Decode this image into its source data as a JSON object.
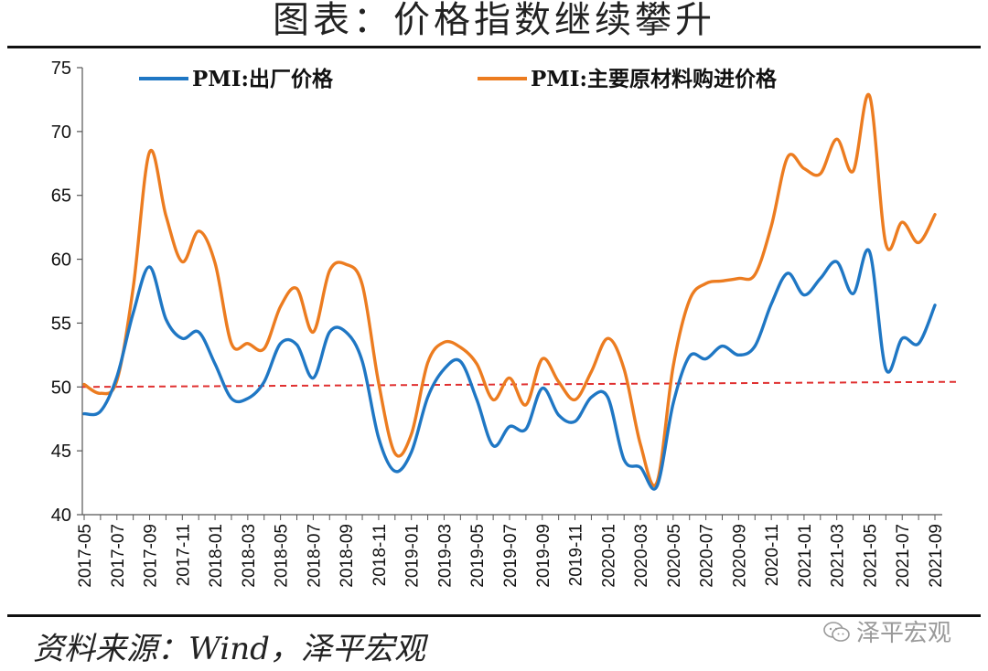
{
  "header": {
    "title": "图表：价格指数继续攀升"
  },
  "footer": {
    "source": "资料来源：Wind，泽平宏观",
    "watermark": "泽平宏观",
    "watermark_icon": "wechat-icon"
  },
  "chart_data": {
    "type": "line",
    "title": "图表：价格指数继续攀升",
    "xlabel": "",
    "ylabel": "",
    "ylim": [
      40,
      75
    ],
    "yticks": [
      40,
      45,
      50,
      55,
      60,
      65,
      70,
      75
    ],
    "grid": false,
    "legend_position": "top",
    "categories": [
      "2017-05",
      "2017-06",
      "2017-07",
      "2017-08",
      "2017-09",
      "2017-10",
      "2017-11",
      "2017-12",
      "2018-01",
      "2018-02",
      "2018-03",
      "2018-04",
      "2018-05",
      "2018-06",
      "2018-07",
      "2018-08",
      "2018-09",
      "2018-10",
      "2018-11",
      "2018-12",
      "2019-01",
      "2019-02",
      "2019-03",
      "2019-04",
      "2019-05",
      "2019-06",
      "2019-07",
      "2019-08",
      "2019-09",
      "2019-10",
      "2019-11",
      "2019-12",
      "2020-01",
      "2020-02",
      "2020-03",
      "2020-04",
      "2020-05",
      "2020-06",
      "2020-07",
      "2020-08",
      "2020-09",
      "2020-10",
      "2020-11",
      "2020-12",
      "2021-01",
      "2021-02",
      "2021-03",
      "2021-04",
      "2021-05",
      "2021-06",
      "2021-07",
      "2021-08",
      "2021-09"
    ],
    "tick_labels": [
      "2017-05",
      "2017-07",
      "2017-09",
      "2017-11",
      "2018-01",
      "2018-03",
      "2018-05",
      "2018-07",
      "2018-09",
      "2018-11",
      "2019-01",
      "2019-03",
      "2019-05",
      "2019-07",
      "2019-09",
      "2019-11",
      "2020-01",
      "2020-03",
      "2020-05",
      "2020-07",
      "2020-09",
      "2020-11",
      "2021-01",
      "2021-03",
      "2021-05",
      "2021-07",
      "2021-09"
    ],
    "series": [
      {
        "name": "PMI:出厂价格",
        "color": "#1f77c4",
        "values": [
          47.9,
          48.1,
          50.8,
          55.8,
          59.4,
          55.3,
          53.8,
          54.3,
          51.8,
          49.1,
          49.1,
          50.4,
          53.4,
          53.3,
          50.7,
          54.3,
          54.3,
          52.0,
          46.0,
          43.4,
          44.9,
          49.2,
          51.4,
          52.0,
          49.0,
          45.4,
          46.9,
          46.7,
          49.9,
          47.8,
          47.3,
          49.2,
          49.2,
          44.3,
          43.7,
          42.2,
          48.7,
          52.4,
          52.2,
          53.2,
          52.5,
          53.2,
          56.5,
          58.9,
          57.2,
          58.5,
          59.8,
          57.3,
          60.6,
          51.4,
          53.8,
          53.4,
          56.4
        ]
      },
      {
        "name": "PMI:主要原材料购进价格",
        "color": "#ec7c20",
        "values": [
          50.2,
          49.5,
          50.5,
          57.8,
          68.4,
          63.4,
          59.8,
          62.2,
          59.7,
          53.4,
          53.4,
          53.0,
          56.3,
          57.7,
          54.3,
          59.1,
          59.6,
          58.0,
          50.3,
          44.8,
          46.3,
          51.9,
          53.5,
          53.1,
          51.8,
          49.0,
          50.7,
          48.6,
          52.2,
          50.4,
          49.0,
          51.2,
          53.8,
          51.4,
          45.5,
          42.5,
          51.6,
          56.8,
          58.1,
          58.3,
          58.5,
          58.8,
          62.6,
          68.0,
          67.1,
          66.7,
          69.4,
          66.9,
          72.8,
          61.2,
          62.9,
          61.3,
          63.5
        ]
      }
    ],
    "reference_line": {
      "value": 50,
      "end_value": 50.4,
      "style": "dashed",
      "color": "#e03030"
    }
  }
}
